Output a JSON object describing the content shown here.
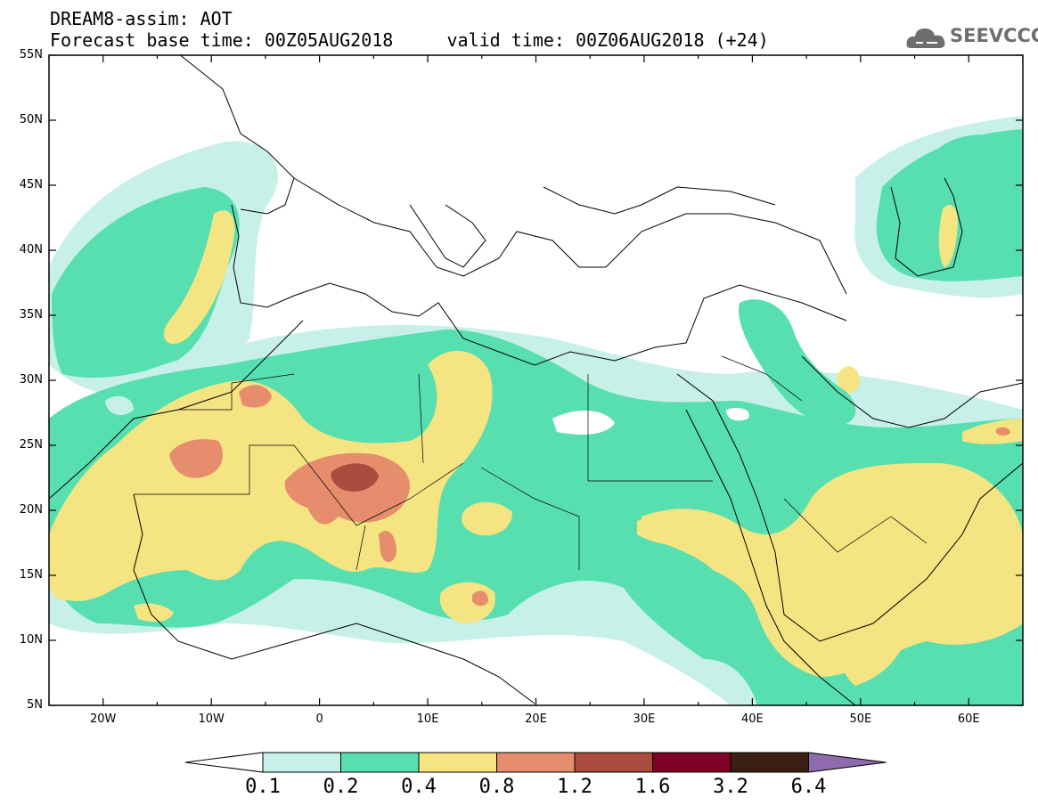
{
  "title": {
    "line1": "DREAM8-assim: AOT",
    "line2": "Forecast base time: 00Z05AUG2018     valid time: 00Z06AUG2018 (+24)"
  },
  "logo": {
    "text": "SEEVCCC",
    "icon": "cloud-icon"
  },
  "map": {
    "lon_range": [
      -25,
      65
    ],
    "lat_range": [
      5,
      55
    ],
    "x_tick_labels": [
      "20W",
      "10W",
      "0",
      "10E",
      "20E",
      "30E",
      "40E",
      "50E",
      "60E"
    ],
    "y_tick_labels": [
      "55N",
      "50N",
      "45N",
      "40N",
      "35N",
      "30N",
      "25N",
      "20N",
      "15N",
      "10N",
      "5N"
    ],
    "grid": false
  },
  "colorbar": {
    "levels": [
      "0.1",
      "0.2",
      "0.4",
      "0.8",
      "1.2",
      "1.6",
      "3.2",
      "6.4"
    ],
    "colors": [
      "#ffffff",
      "#c6f0e8",
      "#57dfb0",
      "#f4e482",
      "#e58d6c",
      "#aa4c3e",
      "#7d0225",
      "#3a1e12",
      "#8e6bad"
    ]
  }
}
